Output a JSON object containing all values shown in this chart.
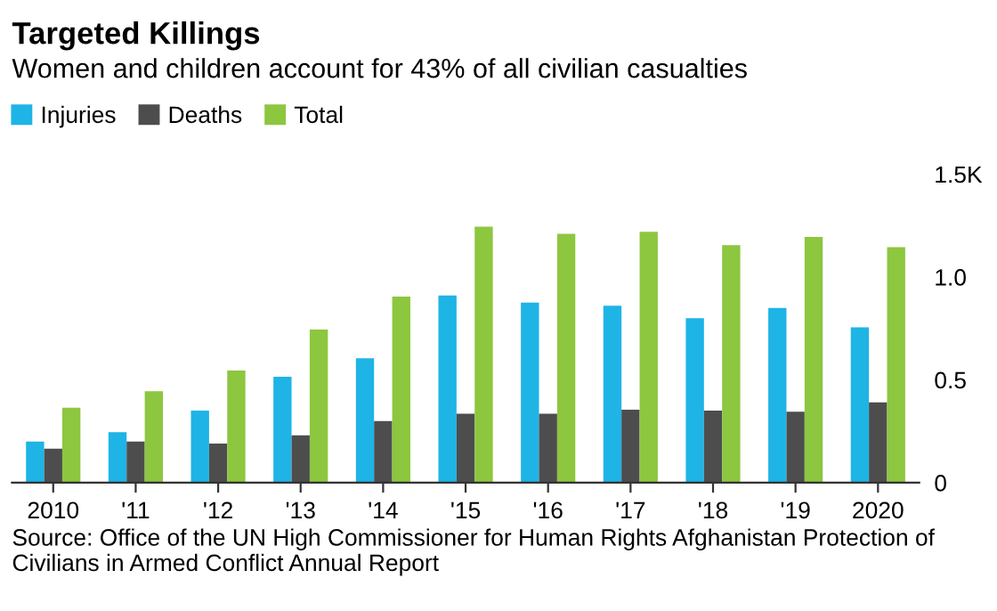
{
  "chart_data": {
    "type": "bar",
    "title": "Targeted Killings",
    "subtitle": "Women and children account for 43% of all civilian casualties",
    "categories": [
      "2010",
      "'11",
      "'12",
      "'13",
      "'14",
      "'15",
      "'16",
      "'17",
      "'18",
      "'19",
      "2020"
    ],
    "series": [
      {
        "name": "Injuries",
        "color": "#1eb4e6",
        "values": [
          0.2,
          0.245,
          0.35,
          0.515,
          0.605,
          0.91,
          0.875,
          0.86,
          0.8,
          0.85,
          0.755
        ]
      },
      {
        "name": "Deaths",
        "color": "#4d4d4d",
        "values": [
          0.165,
          0.2,
          0.19,
          0.23,
          0.3,
          0.335,
          0.335,
          0.355,
          0.35,
          0.345,
          0.39
        ]
      },
      {
        "name": "Total",
        "color": "#8dc63f",
        "values": [
          0.365,
          0.445,
          0.545,
          0.745,
          0.905,
          1.245,
          1.21,
          1.22,
          1.155,
          1.195,
          1.145
        ]
      }
    ],
    "ylim": [
      0,
      1.5
    ],
    "yticks": [
      0,
      {
        "value": 0.5,
        "label": "0.5"
      },
      {
        "value": 1.0,
        "label": "1.0"
      },
      {
        "value": 1.5,
        "label": "1.5K"
      }
    ],
    "legend": "top left",
    "grid": false,
    "annotations": [
      "Source: Office of the UN High Commissioner for Human Rights Afghanistan Protection of Civilians in Armed Conflict Annual Report"
    ]
  }
}
